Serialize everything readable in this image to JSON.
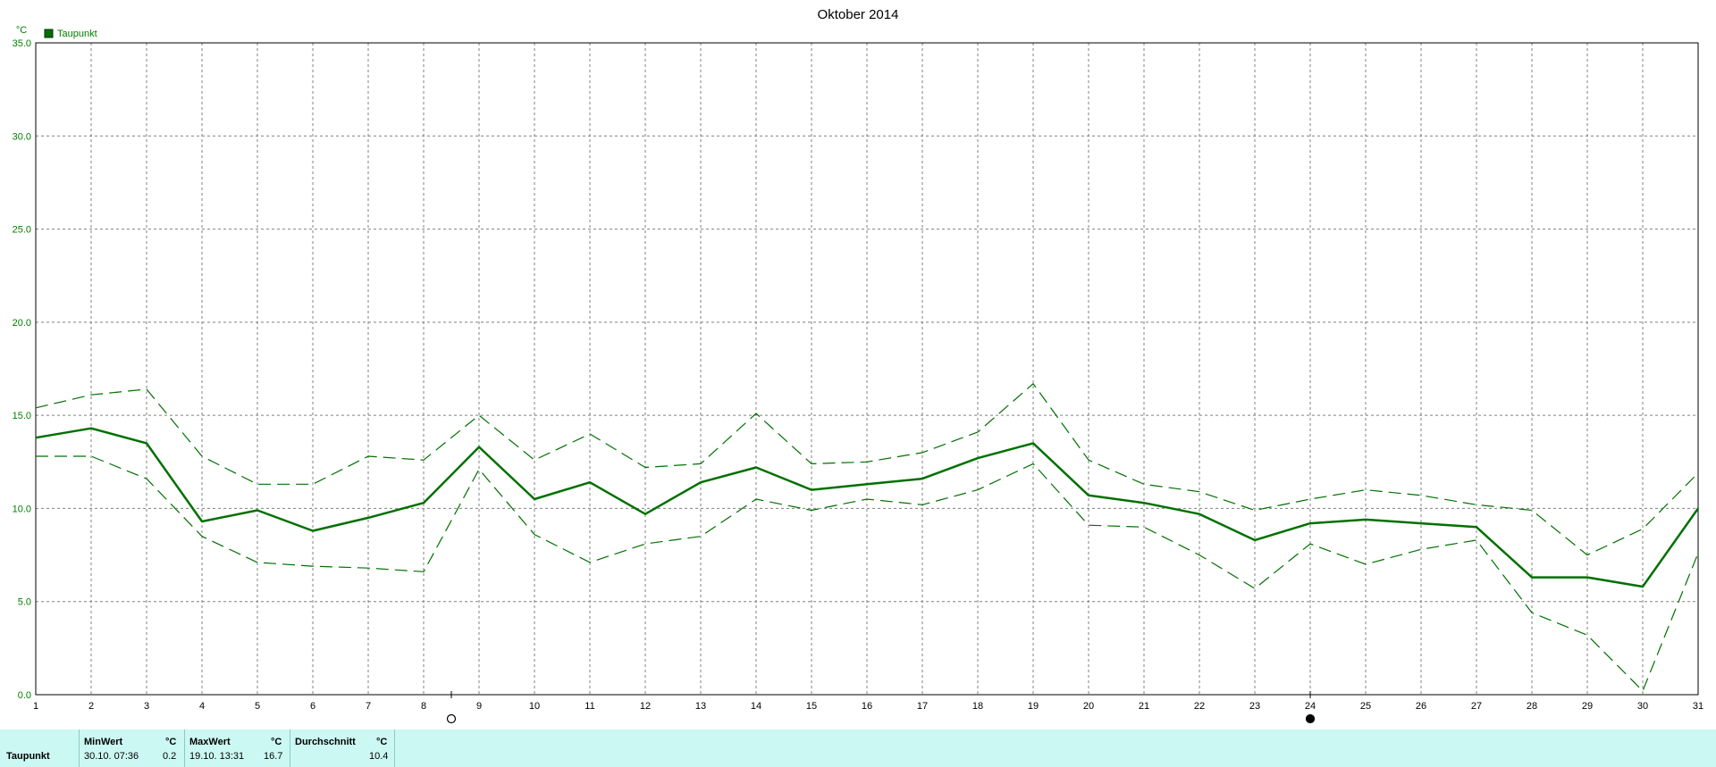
{
  "chart_data": {
    "type": "line",
    "title": "Oktober 2014",
    "ylabel": "°C",
    "xlabel": "",
    "ylim": [
      0,
      35
    ],
    "yticks": [
      "0.0",
      "5.0",
      "10.0",
      "15.0",
      "20.0",
      "25.0",
      "30.0",
      "35.0"
    ],
    "x": [
      1,
      2,
      3,
      4,
      5,
      6,
      7,
      8,
      9,
      10,
      11,
      12,
      13,
      14,
      15,
      16,
      17,
      18,
      19,
      20,
      21,
      22,
      23,
      24,
      25,
      26,
      27,
      28,
      29,
      30,
      31
    ],
    "grid": true,
    "legend_position": "top-left",
    "series": [
      {
        "name": "Taupunkt",
        "style": "solid",
        "values": [
          13.8,
          14.3,
          13.5,
          9.3,
          9.9,
          8.8,
          9.5,
          10.3,
          13.3,
          10.5,
          11.4,
          9.7,
          11.4,
          12.2,
          11.0,
          11.3,
          11.6,
          12.7,
          13.5,
          10.7,
          10.3,
          9.7,
          8.3,
          9.2,
          9.4,
          9.2,
          9.0,
          6.3,
          6.3,
          5.8,
          10.0
        ]
      },
      {
        "style": "dashed",
        "values": [
          15.4,
          16.1,
          16.4,
          12.8,
          11.3,
          11.3,
          12.8,
          12.6,
          15.0,
          12.6,
          14.0,
          12.2,
          12.4,
          15.1,
          12.4,
          12.5,
          13.0,
          14.1,
          16.7,
          12.6,
          11.3,
          10.9,
          9.9,
          10.5,
          11.0,
          10.7,
          10.2,
          9.9,
          7.5,
          8.9,
          11.9
        ]
      },
      {
        "style": "dashed",
        "values": [
          12.8,
          12.8,
          11.6,
          8.5,
          7.1,
          6.9,
          6.8,
          6.6,
          12.1,
          8.6,
          7.1,
          8.1,
          8.5,
          10.5,
          9.9,
          10.5,
          10.2,
          11.0,
          12.4,
          9.1,
          9.0,
          7.5,
          5.7,
          8.1,
          7.0,
          7.8,
          8.3,
          4.4,
          3.2,
          0.2,
          7.6
        ]
      }
    ],
    "annotations": [
      {
        "at_x": 8.5,
        "symbol": "full-moon-icon"
      },
      {
        "at_x": 24,
        "symbol": "new-moon-icon"
      }
    ],
    "colors": {
      "line": "#007000",
      "grid": "#808080",
      "axis_text": "#008000"
    }
  },
  "stats": {
    "row_label": "Taupunkt",
    "min_header": "MinWert",
    "min_unit": "°C",
    "min_time": "30.10.  07:36",
    "min_value": "0.2",
    "max_header": "MaxWert",
    "max_unit": "°C",
    "max_time": "19.10.  13:31",
    "max_value": "16.7",
    "avg_header": "Durchschnitt",
    "avg_unit": "°C",
    "avg_value": "10.4"
  },
  "colors": {
    "stats_background": "#ccf8f4"
  }
}
